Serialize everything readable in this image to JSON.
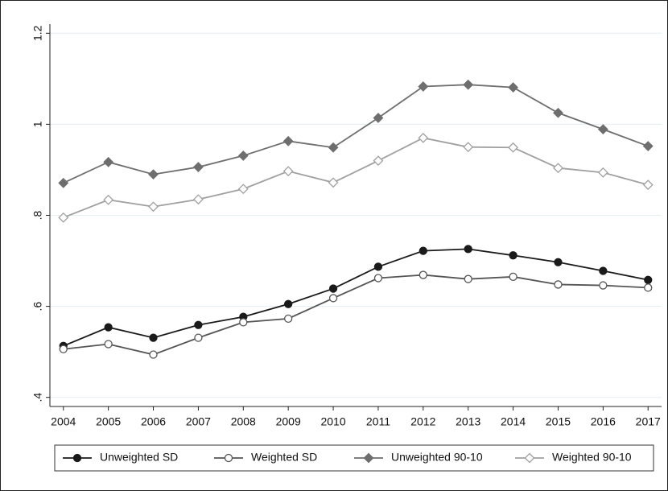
{
  "chart_data": {
    "type": "line",
    "x": [
      2004,
      2005,
      2006,
      2007,
      2008,
      2009,
      2010,
      2011,
      2012,
      2013,
      2014,
      2015,
      2016,
      2017
    ],
    "series": [
      {
        "name": "Unweighted SD",
        "color": "#1a1a1a",
        "marker": "circle",
        "filled": true,
        "values": [
          0.513,
          0.554,
          0.531,
          0.559,
          0.577,
          0.605,
          0.639,
          0.687,
          0.722,
          0.726,
          0.712,
          0.697,
          0.678,
          0.658
        ]
      },
      {
        "name": "Weighted SD",
        "color": "#555555",
        "marker": "circle",
        "filled": false,
        "values": [
          0.506,
          0.517,
          0.494,
          0.531,
          0.565,
          0.573,
          0.618,
          0.662,
          0.669,
          0.66,
          0.665,
          0.648,
          0.646,
          0.641
        ]
      },
      {
        "name": "Unweighted 90-10",
        "color": "#6e6e6e",
        "marker": "diamond",
        "filled": true,
        "values": [
          0.871,
          0.917,
          0.89,
          0.906,
          0.931,
          0.963,
          0.949,
          1.014,
          1.083,
          1.087,
          1.081,
          1.025,
          0.989,
          0.952
        ]
      },
      {
        "name": "Weighted 90-10",
        "color": "#a0a0a0",
        "marker": "diamond",
        "filled": false,
        "values": [
          0.795,
          0.834,
          0.819,
          0.835,
          0.858,
          0.897,
          0.872,
          0.92,
          0.97,
          0.95,
          0.949,
          0.904,
          0.894,
          0.867
        ]
      }
    ],
    "xlim": [
      2003.7,
      2017.3
    ],
    "xticks": [
      2004,
      2005,
      2006,
      2007,
      2008,
      2009,
      2010,
      2011,
      2012,
      2013,
      2014,
      2015,
      2016,
      2017
    ],
    "ylim": [
      0.38,
      1.22
    ],
    "yticks": [
      {
        "value": 0.4,
        "label": ".4"
      },
      {
        "value": 0.6,
        "label": ".6"
      },
      {
        "value": 0.8,
        "label": ".8"
      },
      1,
      {
        "value": 1.2,
        "label": "1.2"
      }
    ],
    "grid": true
  }
}
